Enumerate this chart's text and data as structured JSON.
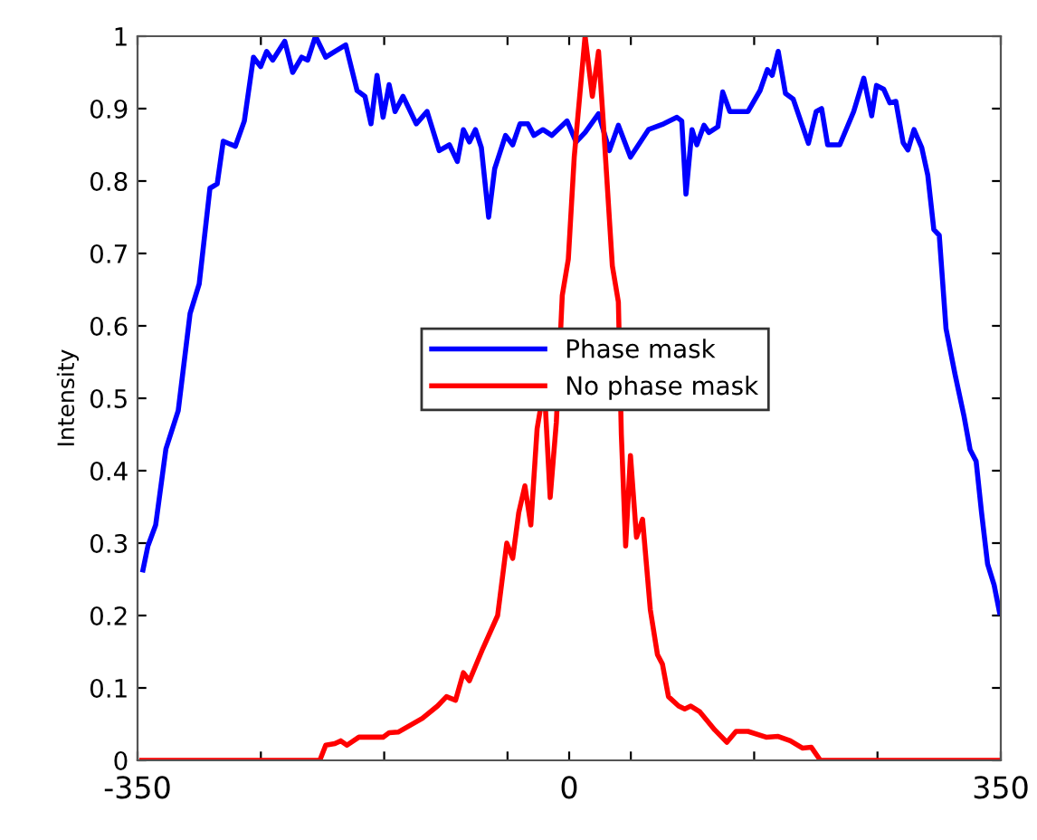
{
  "chart_data": {
    "type": "line",
    "ylabel": "Intensity",
    "xlim": [
      -350,
      350
    ],
    "ylim": [
      0,
      1
    ],
    "xticks": [
      -350,
      {
        "value": -250,
        "label": null
      },
      {
        "value": -150,
        "label": null
      },
      {
        "value": -50,
        "label": null
      },
      0,
      {
        "value": 50,
        "label": null
      },
      {
        "value": 150,
        "label": null
      },
      {
        "value": 250,
        "label": null
      },
      350
    ],
    "yticks": [
      0,
      0.1,
      0.2,
      0.3,
      0.4,
      0.5,
      0.6,
      0.7,
      0.8,
      0.9,
      1
    ],
    "grid": false,
    "legend": "center",
    "marker": "none",
    "line_style": "solid",
    "series": [
      {
        "name": "Phase mask",
        "color": "#0000ff",
        "x": [
          -345.6,
          -341.6,
          -335.3,
          -327,
          -317,
          -307.4,
          -300,
          -291.3,
          -285.4,
          -280.5,
          -270.7,
          -263.4,
          -256,
          -250.2,
          -245.3,
          -240.4,
          -230.6,
          -224.2,
          -216.9,
          -212,
          -205.7,
          -197.4,
          -190,
          -181.2,
          -172,
          -165.6,
          -160.7,
          -155.8,
          -150.9,
          -146,
          -141.2,
          -134.7,
          -124,
          -115.2,
          -105.4,
          -97.1,
          -90.7,
          -85.8,
          -80.9,
          -76,
          -71.2,
          -65.3,
          -60.4,
          -51.6,
          -45.8,
          -39.9,
          -33.5,
          -28.6,
          -21.3,
          -14,
          -1.7,
          5.6,
          12.9,
          23.8,
          32.6,
          39.9,
          49.7,
          64.3,
          76.6,
          87.4,
          91.3,
          94.7,
          99.6,
          103.5,
          109.3,
          113.3,
          120.6,
          124.5,
          130.3,
          137.7,
          145,
          154.8,
          160.7,
          164.6,
          169.5,
          175.4,
          181.7,
          194,
          200.3,
          204.7,
          209.6,
          219.4,
          230.7,
          238.9,
          245.3,
          249.2,
          255,
          260,
          264.9,
          270.8,
          274.7,
          279.6,
          285.9,
          290.8,
          295.7,
          300.1,
          305.6,
          312.9,
          320.2,
          325.1,
          330,
          334.4,
          339.3,
          344.6,
          349
        ],
        "values": [
          0.263,
          0.296,
          0.325,
          0.43,
          0.483,
          0.617,
          0.658,
          0.79,
          0.796,
          0.855,
          0.848,
          0.883,
          0.971,
          0.958,
          0.979,
          0.967,
          0.993,
          0.95,
          0.971,
          0.967,
          1.0,
          0.971,
          0.979,
          0.988,
          0.925,
          0.917,
          0.879,
          0.946,
          0.888,
          0.933,
          0.896,
          0.917,
          0.879,
          0.896,
          0.842,
          0.85,
          0.827,
          0.871,
          0.854,
          0.871,
          0.846,
          0.75,
          0.817,
          0.863,
          0.85,
          0.879,
          0.879,
          0.863,
          0.871,
          0.863,
          0.883,
          0.854,
          0.867,
          0.893,
          0.842,
          0.877,
          0.833,
          0.871,
          0.879,
          0.888,
          0.883,
          0.782,
          0.871,
          0.85,
          0.877,
          0.867,
          0.875,
          0.923,
          0.896,
          0.896,
          0.896,
          0.925,
          0.954,
          0.946,
          0.979,
          0.921,
          0.913,
          0.852,
          0.896,
          0.9,
          0.85,
          0.85,
          0.896,
          0.942,
          0.89,
          0.932,
          0.927,
          0.908,
          0.91,
          0.853,
          0.843,
          0.871,
          0.846,
          0.808,
          0.733,
          0.725,
          0.596,
          0.533,
          0.475,
          0.429,
          0.413,
          0.342,
          0.271,
          0.242,
          0.204
        ]
      },
      {
        "name": "No phase mask",
        "color": "#ff0000",
        "x": [
          -346.6,
          -202.2,
          -197.4,
          -190,
          -185.2,
          -180.2,
          -170.5,
          -150.9,
          -146,
          -138.7,
          -119.1,
          -106.8,
          -99.5,
          -92.1,
          -85.8,
          -80.9,
          -70.1,
          -58,
          -50.6,
          -45.8,
          -40.9,
          -35.9,
          -31.1,
          -26,
          -20.2,
          -15.4,
          -10.4,
          -5.6,
          -0.7,
          4.1,
          12.9,
          18.8,
          23.8,
          27.6,
          35,
          39.9,
          42.3,
          45.8,
          49.7,
          54.6,
          59.5,
          65.8,
          71.6,
          75.6,
          80.5,
          88.8,
          93.7,
          98.6,
          106,
          118.1,
          127.9,
          135.3,
          145,
          159.7,
          169.5,
          179.3,
          189.1,
          196.4,
          203.7,
          349
        ],
        "values": [
          0,
          0,
          0.021,
          0.023,
          0.027,
          0.021,
          0.032,
          0.032,
          0.038,
          0.039,
          0.058,
          0.075,
          0.088,
          0.083,
          0.121,
          0.11,
          0.154,
          0.2,
          0.3,
          0.279,
          0.342,
          0.379,
          0.325,
          0.458,
          0.517,
          0.363,
          0.467,
          0.642,
          0.692,
          0.833,
          1.0,
          0.917,
          0.979,
          0.883,
          0.683,
          0.633,
          0.45,
          0.296,
          0.421,
          0.308,
          0.333,
          0.208,
          0.146,
          0.133,
          0.088,
          0.075,
          0.071,
          0.075,
          0.067,
          0.042,
          0.025,
          0.04,
          0.04,
          0.032,
          0.033,
          0.027,
          0.017,
          0.018,
          0,
          0
        ]
      }
    ]
  }
}
